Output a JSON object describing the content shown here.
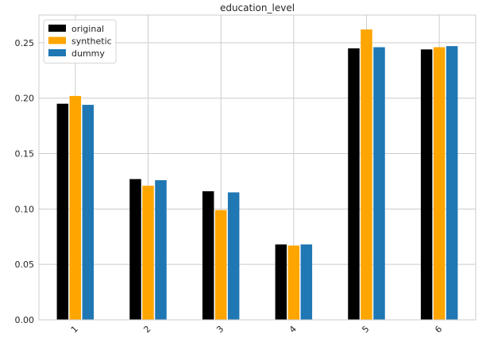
{
  "chart_data": {
    "type": "bar",
    "title": "education_level",
    "xlabel": "",
    "ylabel": "",
    "categories": [
      "1",
      "2",
      "3",
      "4",
      "5",
      "6"
    ],
    "series": [
      {
        "name": "original",
        "color": "#000000",
        "values": [
          0.195,
          0.127,
          0.116,
          0.068,
          0.245,
          0.244
        ]
      },
      {
        "name": "synthetic",
        "color": "#FFA500",
        "values": [
          0.202,
          0.121,
          0.099,
          0.067,
          0.262,
          0.246
        ]
      },
      {
        "name": "dummy",
        "color": "#1F77B4",
        "values": [
          0.194,
          0.126,
          0.115,
          0.068,
          0.246,
          0.247
        ]
      }
    ],
    "ylim": [
      0,
      0.275
    ],
    "yticks": [
      "0.00",
      "0.05",
      "0.10",
      "0.15",
      "0.20",
      "0.25"
    ],
    "grid": true,
    "legend_position": "top-left",
    "xtick_rotation": "45"
  }
}
